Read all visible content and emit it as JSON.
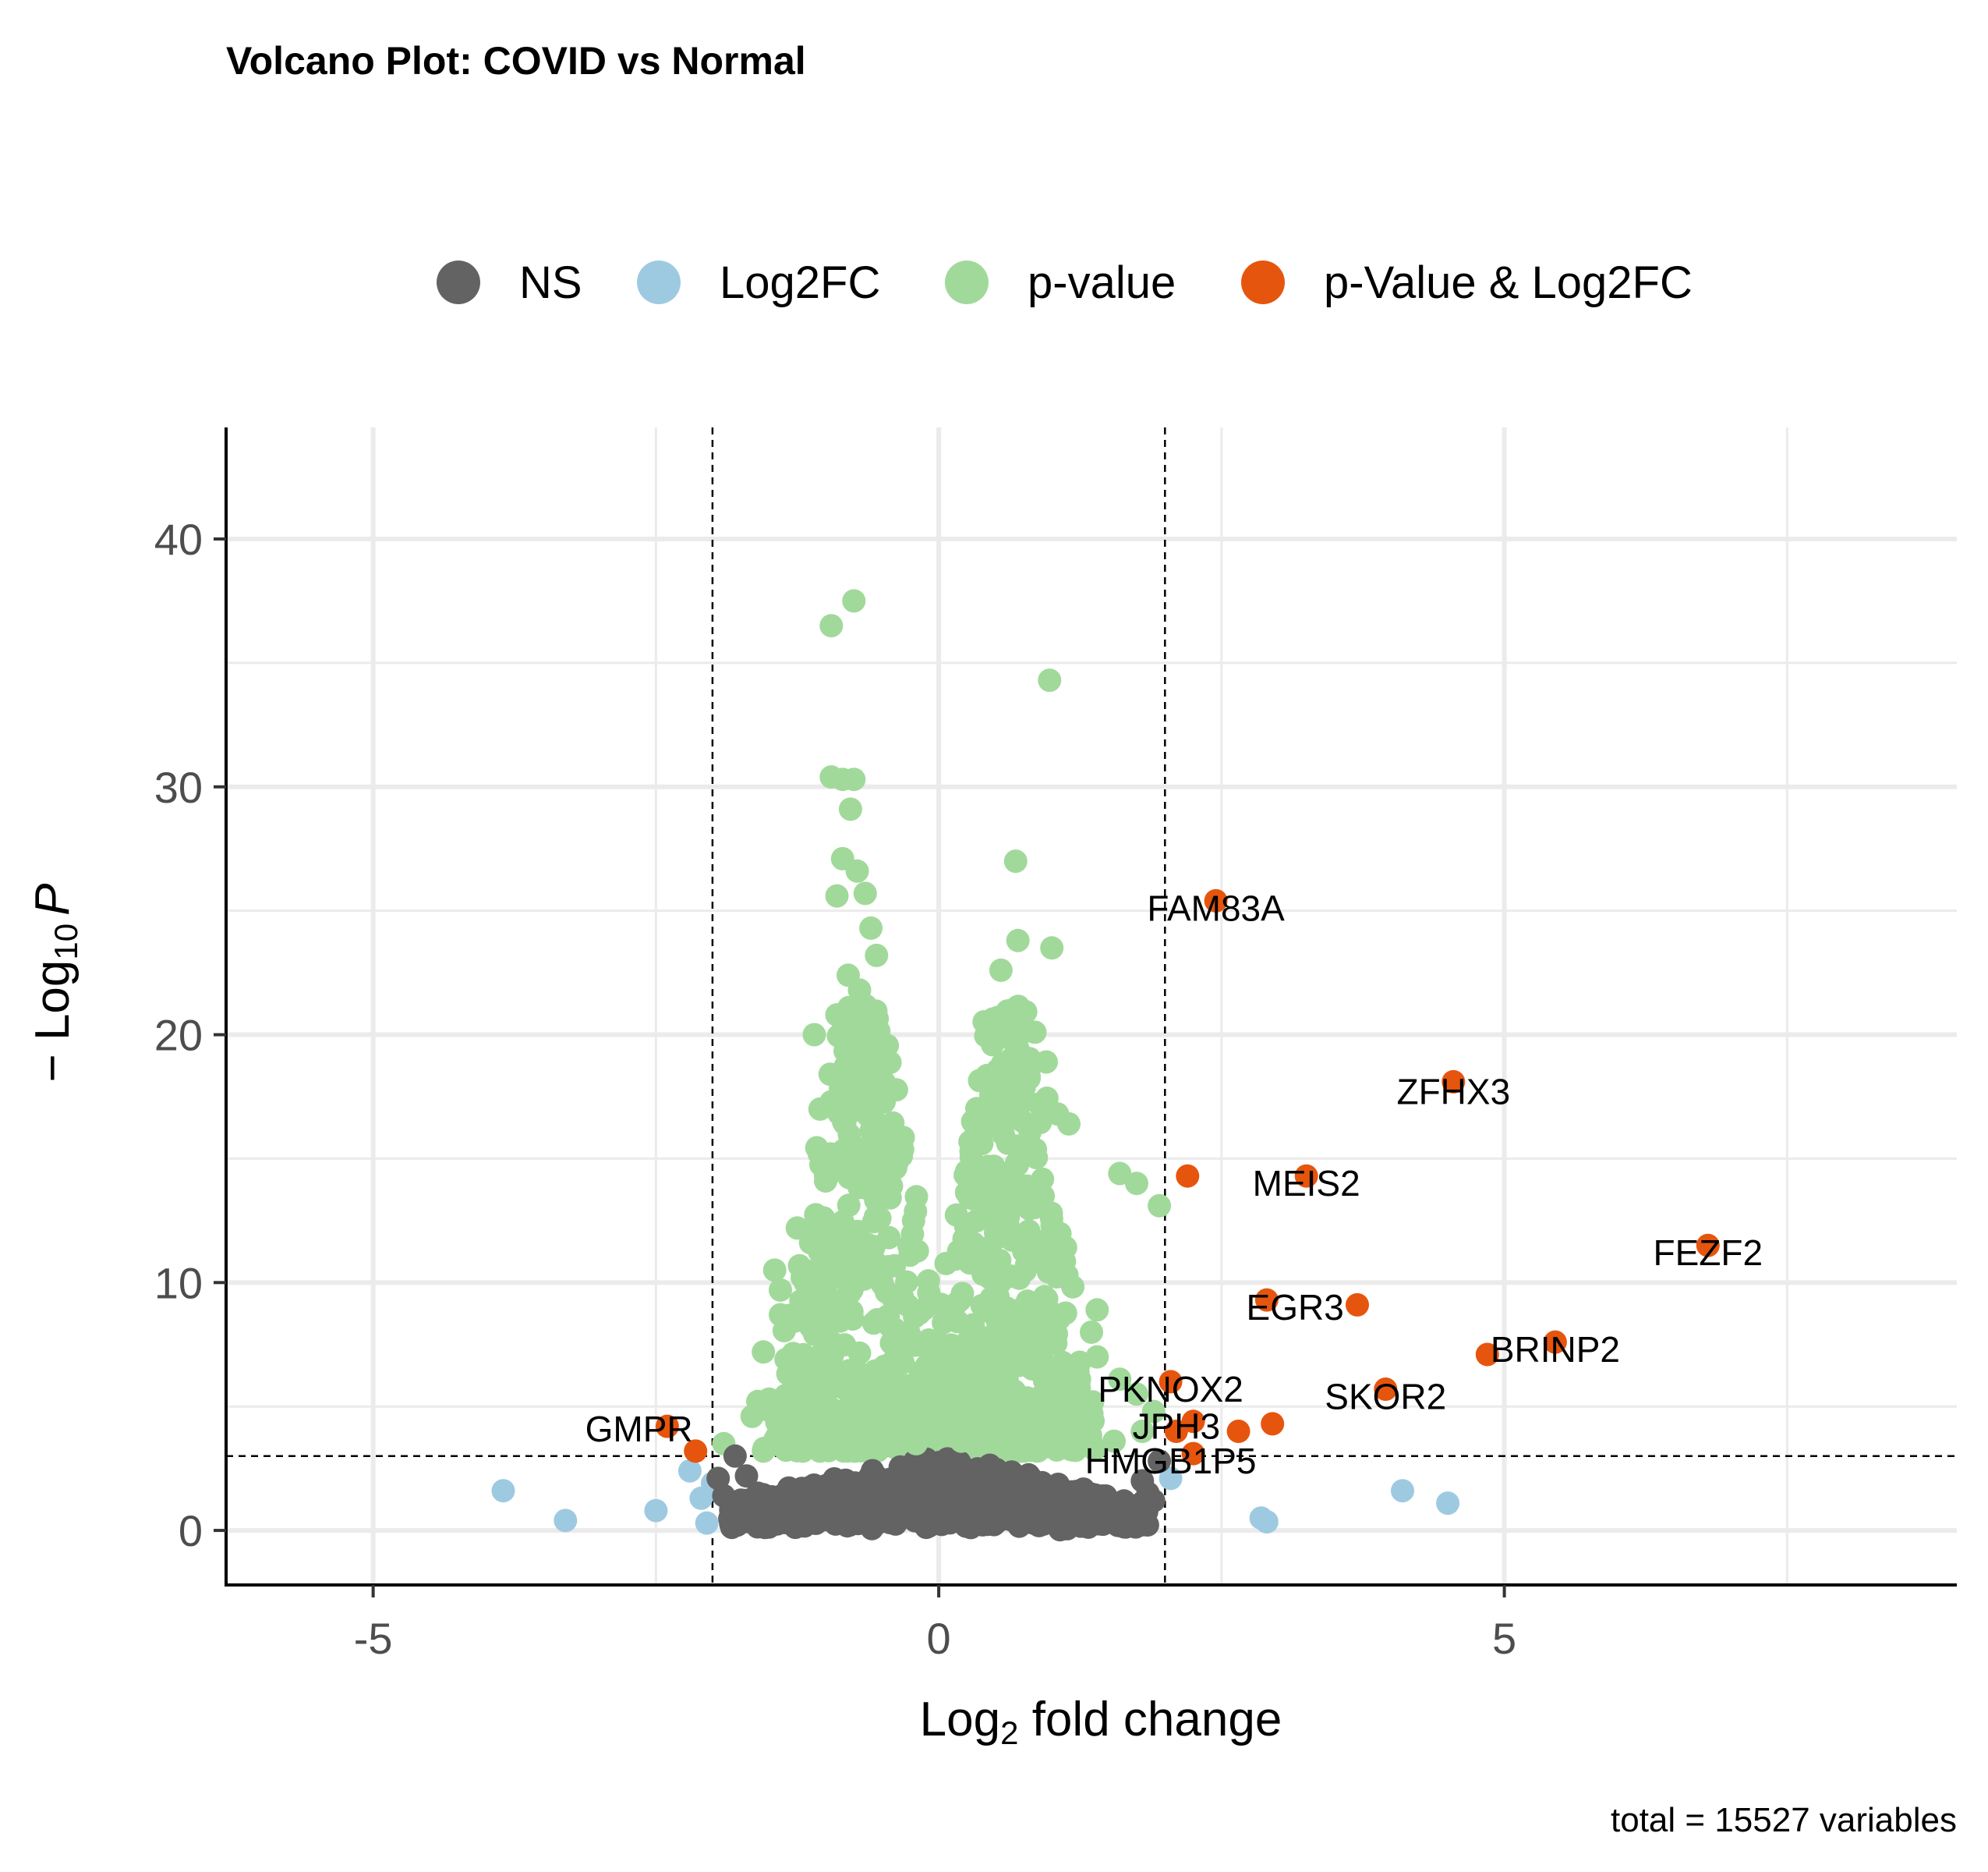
{
  "chart_data": {
    "type": "scatter",
    "title": "Volcano Plot: COVID vs Normal",
    "xlabel_main": "Log",
    "xlabel_sub": "2",
    "xlabel_rest": " fold change",
    "ylabel_prefix": "− Log",
    "ylabel_sub": "10",
    "ylabel_italic": "P",
    "caption": "total = 15527 variables",
    "xlim": [
      -6.3,
      9.0
    ],
    "ylim": [
      -2.2,
      44.5
    ],
    "x_ticks": [
      {
        "value": -5,
        "label": "-5"
      },
      {
        "value": 0,
        "label": "0"
      },
      {
        "value": 5,
        "label": "5"
      }
    ],
    "y_ticks": [
      {
        "value": 0,
        "label": "0"
      },
      {
        "value": 10,
        "label": "10"
      },
      {
        "value": 20,
        "label": "20"
      },
      {
        "value": 30,
        "label": "30"
      },
      {
        "value": 40,
        "label": "40"
      }
    ],
    "fc_cutoff": 2,
    "p_cutoff_log": 3,
    "colors": {
      "NS": "#636363",
      "Log2FC": "#9ecae1",
      "p-value": "#a1d99b",
      "p-Value & Log2FC": "#e6550d",
      "grid": "#ebebeb",
      "axis": "#000000"
    },
    "legend": {
      "placement": "top",
      "items": [
        "NS",
        "Log2FC",
        "p-value",
        "p-Value & Log2FC"
      ]
    },
    "series": [
      {
        "name": "Log2FC",
        "points": [
          [
            -3.85,
            1.6
          ],
          [
            -3.3,
            0.4
          ],
          [
            -2.5,
            0.8
          ],
          [
            -2.2,
            2.4
          ],
          [
            -2.1,
            1.3
          ],
          [
            -2.05,
            0.3
          ],
          [
            -2.0,
            1.9
          ],
          [
            2.05,
            2.1
          ],
          [
            2.85,
            0.5
          ],
          [
            2.9,
            0.35
          ],
          [
            4.1,
            1.6
          ],
          [
            4.5,
            1.1
          ]
        ]
      },
      {
        "name": "p-Value & Log2FC",
        "points": [
          [
            -2.4,
            4.2
          ],
          [
            -2.15,
            3.2
          ],
          [
            2.2,
            14.3
          ],
          [
            2.45,
            25.4
          ],
          [
            3.25,
            14.3
          ],
          [
            3.7,
            9.1
          ],
          [
            2.9,
            9.3
          ],
          [
            4.55,
            18.1
          ],
          [
            6.8,
            11.5
          ],
          [
            5.45,
            7.6
          ],
          [
            4.85,
            7.1
          ],
          [
            3.95,
            5.7
          ],
          [
            2.05,
            6.0
          ],
          [
            2.1,
            4.0
          ],
          [
            2.25,
            4.4
          ],
          [
            2.65,
            4.0
          ],
          [
            2.95,
            4.3
          ],
          [
            2.25,
            3.1
          ]
        ]
      },
      {
        "name": "p-value",
        "points": [
          [
            -0.75,
            37.5
          ],
          [
            -0.95,
            36.5
          ],
          [
            -0.85,
            30.3
          ],
          [
            -0.95,
            30.4
          ],
          [
            -0.75,
            30.3
          ],
          [
            -0.78,
            29.1
          ],
          [
            -0.85,
            27.1
          ],
          [
            -0.72,
            26.6
          ],
          [
            -0.65,
            25.7
          ],
          [
            -0.9,
            25.6
          ],
          [
            -0.6,
            24.3
          ],
          [
            -0.55,
            23.2
          ],
          [
            -0.8,
            22.4
          ],
          [
            -0.7,
            21.8
          ],
          [
            -0.9,
            20.8
          ],
          [
            -1.1,
            20.0
          ],
          [
            -0.6,
            19.4
          ],
          [
            -1.05,
            17.0
          ],
          [
            -1.0,
            14.1
          ],
          [
            -1.25,
            12.2
          ],
          [
            -1.45,
            10.5
          ],
          [
            -1.4,
            9.7
          ],
          [
            -1.4,
            8.7
          ],
          [
            -1.55,
            7.2
          ],
          [
            -1.35,
            6.9
          ],
          [
            -1.6,
            5.2
          ],
          [
            -1.5,
            5.3
          ],
          [
            -1.65,
            4.6
          ],
          [
            -1.9,
            3.5
          ],
          [
            0.98,
            34.3
          ],
          [
            0.68,
            27.0
          ],
          [
            0.7,
            23.8
          ],
          [
            0.55,
            22.6
          ],
          [
            1.0,
            23.5
          ],
          [
            0.7,
            19.9
          ],
          [
            0.85,
            20.1
          ],
          [
            0.95,
            18.9
          ],
          [
            0.8,
            18.3
          ],
          [
            1.15,
            16.4
          ],
          [
            1.05,
            16.8
          ],
          [
            0.3,
            16.5
          ],
          [
            0.45,
            17.9
          ],
          [
            1.6,
            14.4
          ],
          [
            1.75,
            14.0
          ],
          [
            1.95,
            13.1
          ],
          [
            1.4,
            8.9
          ],
          [
            1.35,
            8.0
          ],
          [
            1.4,
            7.0
          ],
          [
            1.6,
            6.1
          ],
          [
            1.75,
            5.5
          ],
          [
            1.9,
            4.8
          ],
          [
            1.8,
            4.0
          ],
          [
            1.55,
            3.6
          ],
          [
            -0.2,
            3.5
          ],
          [
            0.2,
            3.6
          ],
          [
            0.5,
            12.3
          ],
          [
            0.45,
            10.2
          ]
        ]
      },
      {
        "name": "NS",
        "points": [
          [
            -1.8,
            3.0
          ],
          [
            -1.7,
            2.2
          ],
          [
            -1.6,
            1.5
          ],
          [
            -1.8,
            0.6
          ],
          [
            -1.95,
            2.1
          ],
          [
            -1.9,
            1.4
          ],
          [
            1.85,
            1.5
          ],
          [
            1.9,
            1.2
          ],
          [
            1.95,
            2.8
          ],
          [
            1.8,
            2.0
          ],
          [
            -1.5,
            0.3
          ],
          [
            1.5,
            0.5
          ]
        ]
      }
    ],
    "labels": [
      {
        "text": "FAM83A",
        "x": 2.45,
        "y": 25.1
      },
      {
        "text": "ZFHX3",
        "x": 4.55,
        "y": 17.7
      },
      {
        "text": "MEIS2",
        "x": 3.25,
        "y": 14.0
      },
      {
        "text": "FEZF2",
        "x": 6.8,
        "y": 11.2
      },
      {
        "text": "EGR3",
        "x": 3.15,
        "y": 9.0
      },
      {
        "text": "BRINP2",
        "x": 5.45,
        "y": 7.3
      },
      {
        "text": "SKOR2",
        "x": 3.95,
        "y": 5.4
      },
      {
        "text": "PKNOX2",
        "x": 2.05,
        "y": 5.7
      },
      {
        "text": "JPH3",
        "x": 2.1,
        "y": 4.2
      },
      {
        "text": "HMGB1P5",
        "x": 2.05,
        "y": 2.8
      },
      {
        "text": "GMPR",
        "x": -2.65,
        "y": 4.1
      }
    ]
  }
}
